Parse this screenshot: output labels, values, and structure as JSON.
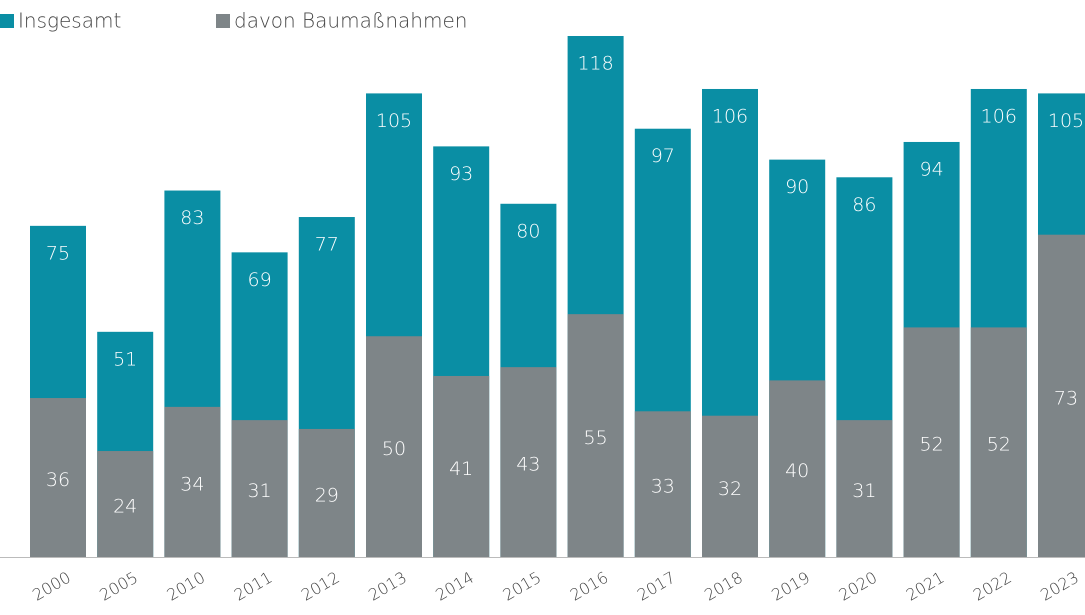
{
  "chart_data": {
    "type": "bar",
    "overlap": true,
    "categories": [
      "2000",
      "2005",
      "2010",
      "2011",
      "2012",
      "2013",
      "2014",
      "2015",
      "2016",
      "2017",
      "2018",
      "2019",
      "2020",
      "2021",
      "2022",
      "2023"
    ],
    "series": [
      {
        "name": "Insgesamt",
        "color": "#0a8ea4",
        "values": [
          75,
          51,
          83,
          69,
          77,
          105,
          93,
          80,
          118,
          97,
          106,
          90,
          86,
          94,
          106,
          105
        ]
      },
      {
        "name": "davon Baumaßnahmen",
        "color": "#7e8588",
        "values": [
          36,
          24,
          34,
          31,
          29,
          50,
          41,
          43,
          55,
          33,
          32,
          40,
          31,
          52,
          52,
          73
        ]
      }
    ],
    "legend": "top-left"
  }
}
